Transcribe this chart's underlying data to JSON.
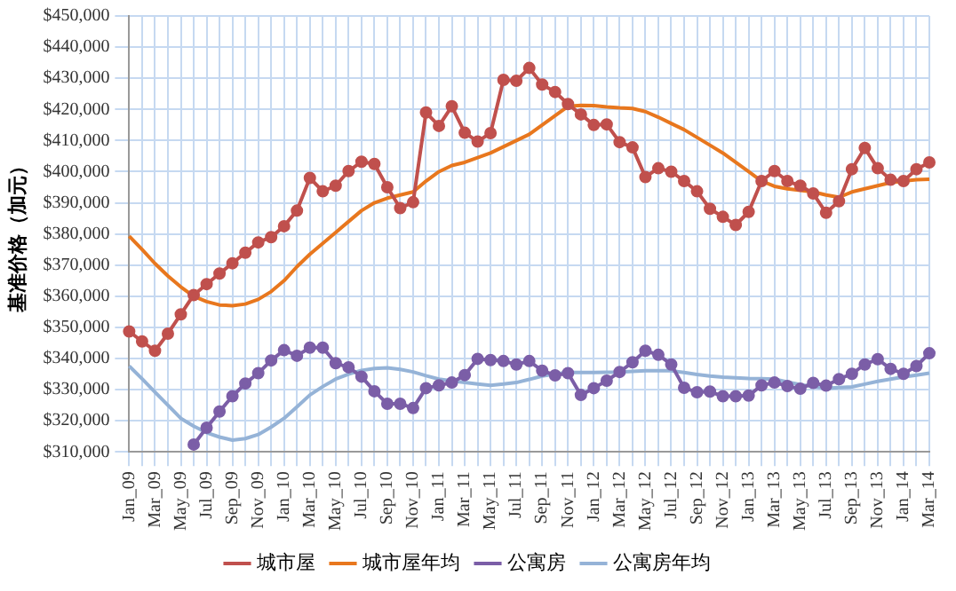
{
  "chart_data": {
    "type": "line",
    "ylabel": "基准价格（加元）",
    "categories": [
      "Jan_09",
      null,
      "Mar_09",
      null,
      "May_09",
      null,
      "Jul_09",
      null,
      "Sep_09",
      null,
      "Nov_09",
      null,
      "Jan_10",
      null,
      "Mar_10",
      null,
      "May_10",
      null,
      "Jul_10",
      null,
      "Sep_10",
      null,
      "Nov_10",
      null,
      "Jan_11",
      null,
      "Mar_11",
      null,
      "May_11",
      null,
      "Jul_11",
      null,
      "Sep_11",
      null,
      "Nov_11",
      null,
      "Jan_12",
      null,
      "Mar_12",
      null,
      "May_12",
      null,
      "Jul_12",
      null,
      "Sep_12",
      null,
      "Nov_12",
      null,
      "Jan_13",
      null,
      "Mar_13",
      null,
      "May_13",
      null,
      "Jul_13",
      null,
      "Sep_13",
      null,
      "Nov_13",
      null,
      "Jan_14",
      null,
      "Mar_14"
    ],
    "series": [
      {
        "name": "城市屋",
        "color": "#c0504d",
        "marker": "circle",
        "values": [
          348700,
          345500,
          342500,
          348000,
          354200,
          360400,
          363900,
          367300,
          370600,
          374000,
          377300,
          379000,
          382500,
          387500,
          398000,
          393700,
          395500,
          400200,
          403200,
          402500,
          395000,
          388300,
          390200,
          419000,
          414700,
          421000,
          412500,
          409700,
          412400,
          429500,
          429200,
          433300,
          428000,
          425600,
          421700,
          418400,
          415000,
          415200,
          409500,
          407800,
          398300,
          401100,
          400000,
          397000,
          393700,
          388100,
          385500,
          382900,
          387100,
          397000,
          400200,
          397000,
          395500,
          393000,
          386800,
          390500,
          400800,
          407600,
          401100,
          397400,
          397000,
          400800,
          403000
        ]
      },
      {
        "name": "城市屋年均",
        "color": "#e8771e",
        "marker": "none",
        "values": [
          379300,
          375000,
          370500,
          366500,
          363000,
          360000,
          358300,
          357200,
          357000,
          357500,
          359000,
          361500,
          365000,
          369500,
          373500,
          377000,
          380500,
          384000,
          387500,
          390000,
          391500,
          392500,
          393500,
          397000,
          400000,
          402000,
          403000,
          404500,
          406000,
          408000,
          410000,
          412000,
          415000,
          418000,
          421000,
          421300,
          421200,
          420800,
          420500,
          420300,
          419300,
          417500,
          415500,
          413500,
          411000,
          408500,
          406000,
          403000,
          400000,
          397000,
          395300,
          394500,
          394000,
          393500,
          392500,
          391800,
          393500,
          394500,
          395500,
          396500,
          397000,
          397400,
          397600
        ]
      },
      {
        "name": "公寓房",
        "color": "#7b5ea7",
        "marker": "circle",
        "values": [
          null,
          null,
          null,
          null,
          null,
          312400,
          317800,
          323000,
          327900,
          332000,
          335300,
          339400,
          342700,
          340900,
          343500,
          343500,
          338500,
          337200,
          334200,
          329500,
          325500,
          325500,
          324100,
          330500,
          331400,
          332300,
          334700,
          339900,
          339500,
          339200,
          338100,
          339200,
          336100,
          334600,
          335300,
          328300,
          330500,
          332900,
          335700,
          338800,
          342500,
          341200,
          338100,
          330600,
          329200,
          329400,
          327900,
          327900,
          328100,
          331400,
          332300,
          331200,
          330300,
          332200,
          331300,
          333400,
          335100,
          338100,
          339800,
          336700,
          335100,
          337600,
          341700
        ]
      },
      {
        "name": "公寓房年均",
        "color": "#95b3d7",
        "marker": "none",
        "values": [
          337600,
          333500,
          329200,
          325000,
          320800,
          318300,
          316200,
          314800,
          313800,
          314300,
          315600,
          318000,
          320800,
          324500,
          328300,
          331000,
          333400,
          335000,
          336200,
          336800,
          337000,
          336500,
          335700,
          334500,
          333400,
          332800,
          332300,
          331800,
          331400,
          331800,
          332300,
          333300,
          334400,
          335000,
          335500,
          335500,
          335500,
          335600,
          335700,
          335900,
          336100,
          336100,
          336100,
          335500,
          334900,
          334400,
          334000,
          333800,
          333600,
          333500,
          333400,
          332500,
          331600,
          331000,
          330500,
          330700,
          330900,
          331800,
          332700,
          333400,
          334100,
          334700,
          335300
        ]
      }
    ],
    "ylim": [
      310000,
      450000
    ],
    "yticks": [
      {
        "value": 310000,
        "label": "$310,000"
      },
      {
        "value": 320000,
        "label": "$320,000"
      },
      {
        "value": 330000,
        "label": "$330,000"
      },
      {
        "value": 340000,
        "label": "$340,000"
      },
      {
        "value": 350000,
        "label": "$350,000"
      },
      {
        "value": 360000,
        "label": "$360,000"
      },
      {
        "value": 370000,
        "label": "$370,000"
      },
      {
        "value": 380000,
        "label": "$380,000"
      },
      {
        "value": 390000,
        "label": "$390,000"
      },
      {
        "value": 400000,
        "label": "$400,000"
      },
      {
        "value": 410000,
        "label": "$410,000"
      },
      {
        "value": 420000,
        "label": "$420,000"
      },
      {
        "value": 430000,
        "label": "$430,000"
      },
      {
        "value": 440000,
        "label": "$440,000"
      },
      {
        "value": 450000,
        "label": "$450,000"
      }
    ],
    "grid": true,
    "legend": "bottom"
  }
}
